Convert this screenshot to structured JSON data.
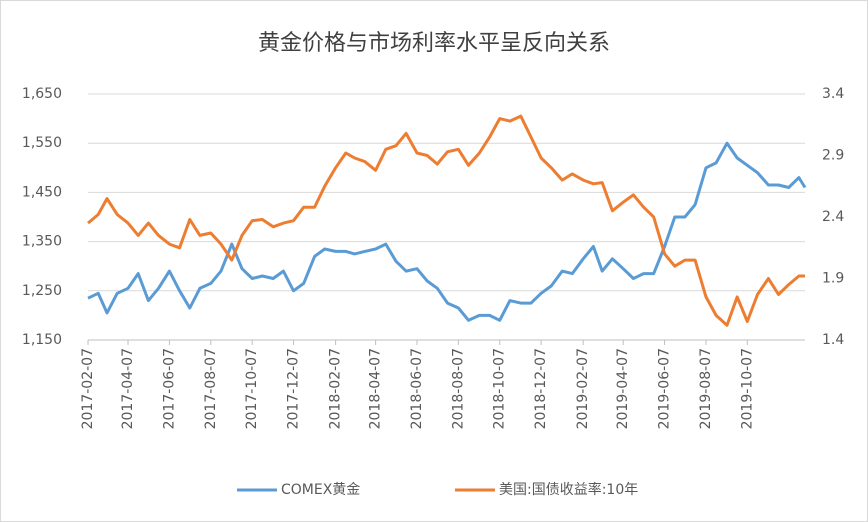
{
  "chart_data": {
    "type": "line",
    "title": "黄金价格与市场利率水平呈反向关系",
    "x": [
      "2017-02-07",
      "2017-02-22",
      "2017-03-07",
      "2017-03-22",
      "2017-04-07",
      "2017-04-22",
      "2017-05-07",
      "2017-05-22",
      "2017-06-07",
      "2017-06-22",
      "2017-07-07",
      "2017-07-22",
      "2017-08-07",
      "2017-08-22",
      "2017-09-07",
      "2017-09-22",
      "2017-10-07",
      "2017-10-22",
      "2017-11-07",
      "2017-11-22",
      "2017-12-07",
      "2017-12-22",
      "2018-01-07",
      "2018-01-22",
      "2018-02-07",
      "2018-02-22",
      "2018-03-07",
      "2018-03-22",
      "2018-04-07",
      "2018-04-22",
      "2018-05-07",
      "2018-05-22",
      "2018-06-07",
      "2018-06-22",
      "2018-07-07",
      "2018-07-22",
      "2018-08-07",
      "2018-08-22",
      "2018-09-07",
      "2018-09-22",
      "2018-10-07",
      "2018-10-22",
      "2018-11-07",
      "2018-11-22",
      "2018-12-07",
      "2018-12-22",
      "2019-01-07",
      "2019-01-22",
      "2019-02-07",
      "2019-02-22",
      "2019-03-07",
      "2019-03-22",
      "2019-04-07",
      "2019-04-22",
      "2019-05-07",
      "2019-05-22",
      "2019-06-07",
      "2019-06-22",
      "2019-07-07",
      "2019-07-22",
      "2019-08-07",
      "2019-08-22",
      "2019-09-07",
      "2019-09-22",
      "2019-10-07",
      "2019-10-22",
      "2019-11-07",
      "2019-11-22",
      "2019-12-07",
      "2019-12-22",
      "2019-12-31"
    ],
    "series": [
      {
        "name": "COMEX黄金",
        "color": "#5b9bd5",
        "values": [
          1235,
          1245,
          1205,
          1245,
          1255,
          1285,
          1230,
          1255,
          1290,
          1250,
          1215,
          1255,
          1265,
          1290,
          1345,
          1295,
          1275,
          1280,
          1275,
          1290,
          1250,
          1265,
          1320,
          1335,
          1330,
          1330,
          1325,
          1330,
          1335,
          1345,
          1310,
          1290,
          1295,
          1270,
          1255,
          1225,
          1215,
          1190,
          1200,
          1200,
          1190,
          1230,
          1225,
          1225,
          1245,
          1260,
          1290,
          1285,
          1315,
          1340,
          1290,
          1315,
          1295,
          1275,
          1285,
          1285,
          1340,
          1400,
          1400,
          1425,
          1500,
          1510,
          1550,
          1520,
          1505,
          1490,
          1465,
          1465,
          1460,
          1480,
          1460
        ]
      },
      {
        "name": "美国:国债收益率:10年",
        "color": "#ed7d31",
        "axis": "y2",
        "values": [
          2.35,
          2.42,
          2.55,
          2.42,
          2.35,
          2.25,
          2.35,
          2.25,
          2.18,
          2.15,
          2.38,
          2.25,
          2.27,
          2.18,
          2.05,
          2.25,
          2.37,
          2.38,
          2.32,
          2.35,
          2.37,
          2.48,
          2.48,
          2.65,
          2.8,
          2.92,
          2.88,
          2.85,
          2.78,
          2.95,
          2.98,
          3.08,
          2.92,
          2.9,
          2.83,
          2.93,
          2.95,
          2.82,
          2.92,
          3.05,
          3.2,
          3.18,
          3.22,
          3.05,
          2.88,
          2.8,
          2.7,
          2.75,
          2.7,
          2.67,
          2.68,
          2.45,
          2.52,
          2.58,
          2.48,
          2.4,
          2.1,
          2.0,
          2.05,
          2.05,
          1.75,
          1.6,
          1.52,
          1.75,
          1.55,
          1.77,
          1.9,
          1.77,
          1.85,
          1.92,
          1.92
        ]
      }
    ],
    "xlim": [
      "2017-02-07",
      "2019-12-31"
    ],
    "xticks": [
      "2017-02-07",
      "2017-04-07",
      "2017-06-07",
      "2017-08-07",
      "2017-10-07",
      "2017-12-07",
      "2018-02-07",
      "2018-04-07",
      "2018-06-07",
      "2018-08-07",
      "2018-10-07",
      "2018-12-07",
      "2019-02-07",
      "2019-04-07",
      "2019-06-07",
      "2019-08-07",
      "2019-10-07"
    ],
    "ylim": [
      1150,
      1650
    ],
    "yticks": [
      {
        "value": 1150,
        "label": "1,150"
      },
      {
        "value": 1250,
        "label": "1,250"
      },
      {
        "value": 1350,
        "label": "1,350"
      },
      {
        "value": 1450,
        "label": "1,450"
      },
      {
        "value": 1550,
        "label": "1,550"
      },
      {
        "value": 1650,
        "label": "1,650"
      }
    ],
    "y2lim": [
      1.4,
      3.4
    ],
    "y2ticks": [
      1.4,
      1.9,
      2.4,
      2.9,
      3.4
    ],
    "grid": true
  }
}
